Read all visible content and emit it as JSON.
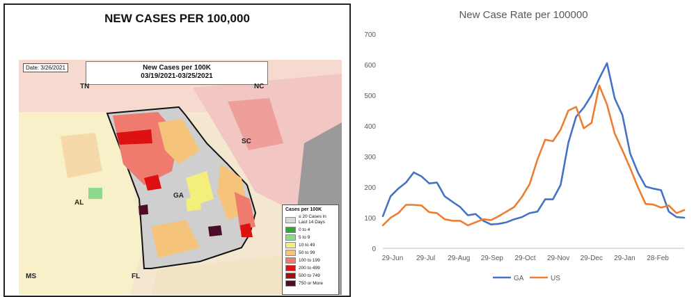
{
  "left_panel": {
    "title": "NEW CASES PER 100,000",
    "map": {
      "date": "Date: 3/26/2021",
      "heading_line1": "New Cases per 100K",
      "heading_line2": "03/19/2021-03/25/2021",
      "state_labels": [
        "TN",
        "NC",
        "SC",
        "GA",
        "AL",
        "MS",
        "FL"
      ],
      "legend": {
        "title": "Cases per 100K",
        "items": [
          {
            "label": "≤ 20 Cases in Last 14 Days",
            "color": "#d9d9d9"
          },
          {
            "label": "0 to 4",
            "color": "#2eaa2e"
          },
          {
            "label": "5 to 9",
            "color": "#8fd88f"
          },
          {
            "label": "10 to 49",
            "color": "#f4ef7a"
          },
          {
            "label": "50 to 99",
            "color": "#f5c37a"
          },
          {
            "label": "100 to 199",
            "color": "#ee7b6e"
          },
          {
            "label": "200 to 499",
            "color": "#dd1111"
          },
          {
            "label": "500 to 749",
            "color": "#a11010"
          },
          {
            "label": "750 or More",
            "color": "#4d0b2a"
          }
        ]
      }
    }
  },
  "chart_data": {
    "type": "line",
    "title": "New Case Rate per 100000",
    "xlabel": "",
    "ylabel": "",
    "ylim": [
      0,
      700
    ],
    "yticks": [
      0,
      100,
      200,
      300,
      400,
      500,
      600,
      700
    ],
    "xtick_labels": [
      "29-Jun",
      "29-Jul",
      "29-Aug",
      "29-Sep",
      "29-Oct",
      "29-Nov",
      "29-Dec",
      "29-Jan",
      "28-Feb"
    ],
    "grid": false,
    "legend_position": "bottom",
    "series": [
      {
        "name": "GA",
        "color": "#4472c4",
        "values": [
          105,
          170,
          195,
          215,
          248,
          235,
          212,
          215,
          170,
          152,
          135,
          108,
          112,
          90,
          78,
          80,
          85,
          95,
          102,
          115,
          120,
          160,
          160,
          207,
          345,
          430,
          460,
          500,
          555,
          605,
          490,
          435,
          310,
          248,
          202,
          195,
          190,
          120,
          102,
          100
        ]
      },
      {
        "name": "US",
        "color": "#ed7d31",
        "values": [
          75,
          100,
          115,
          142,
          142,
          140,
          118,
          115,
          95,
          90,
          90,
          75,
          85,
          95,
          92,
          105,
          120,
          135,
          168,
          210,
          290,
          355,
          350,
          388,
          450,
          462,
          392,
          410,
          532,
          470,
          375,
          320,
          262,
          200,
          145,
          143,
          133,
          140,
          115,
          125
        ]
      }
    ]
  }
}
